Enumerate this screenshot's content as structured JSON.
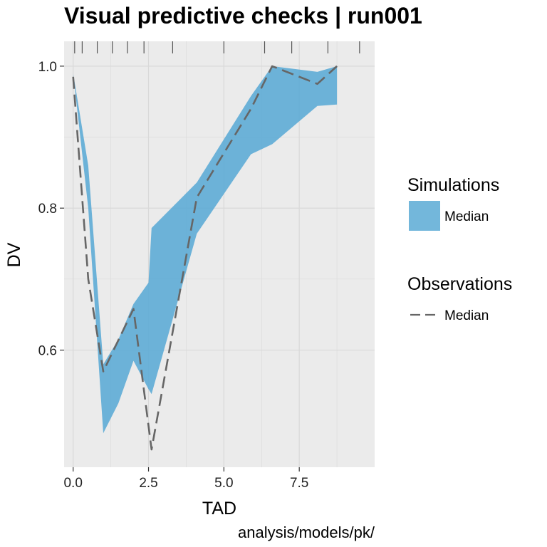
{
  "chart_data": {
    "type": "area",
    "title": "Visual predictive checks | run001",
    "xlabel": "TAD",
    "ylabel": "DV",
    "caption": "analysis/models/pk/",
    "xlim": [
      -0.3,
      10.0
    ],
    "ylim": [
      0.435,
      1.035
    ],
    "x_ticks": [
      0.0,
      2.5,
      5.0,
      7.5
    ],
    "x_tick_labels": [
      "0.0",
      "2.5",
      "5.0",
      "7.5"
    ],
    "y_ticks": [
      0.6,
      0.8,
      1.0
    ],
    "y_tick_labels": [
      "0.6",
      "0.8",
      "1.0"
    ],
    "grid": true,
    "legend_position": "right",
    "rug_x": [
      0.05,
      0.3,
      0.8,
      1.3,
      1.8,
      2.35,
      3.3,
      5.0,
      6.35,
      7.25,
      8.45,
      9.5
    ],
    "series": [
      {
        "name": "Median",
        "group": "Simulations",
        "kind": "ribbon",
        "color": "#5aaad5",
        "x": [
          0.0,
          0.5,
          1.0,
          1.5,
          2.0,
          2.5,
          2.6,
          4.1,
          5.9,
          6.6,
          8.1,
          8.75
        ],
        "upper": [
          0.99,
          0.86,
          0.58,
          0.615,
          0.665,
          0.695,
          0.772,
          0.836,
          0.958,
          1.0,
          0.992,
          1.0
        ],
        "lower": [
          0.99,
          0.8,
          0.483,
          0.525,
          0.585,
          0.545,
          0.538,
          0.764,
          0.876,
          0.89,
          0.944,
          0.946
        ]
      },
      {
        "name": "Median",
        "group": "Observations",
        "kind": "dashed-line",
        "color": "#666666",
        "x": [
          0.0,
          0.5,
          1.0,
          2.0,
          2.6,
          4.1,
          5.9,
          6.6,
          8.1,
          8.75
        ],
        "y": [
          0.985,
          0.7,
          0.57,
          0.658,
          0.46,
          0.815,
          0.94,
          1.0,
          0.975,
          1.0
        ]
      }
    ]
  },
  "legend": {
    "simulations_title": "Simulations",
    "simulations_label": "Median",
    "observations_title": "Observations",
    "observations_label": "Median"
  },
  "colors": {
    "panel_bg": "#ebebeb",
    "grid": "#d9d9d9",
    "ribbon": "#5aaad5",
    "line": "#666666"
  }
}
